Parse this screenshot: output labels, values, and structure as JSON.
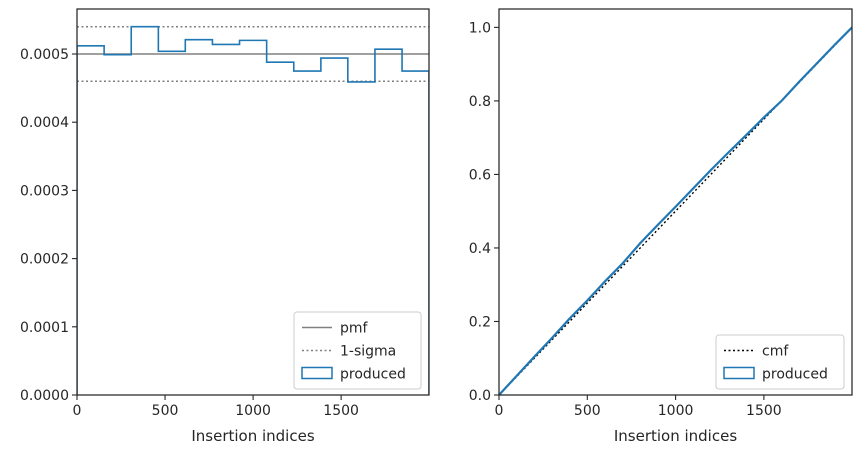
{
  "chart_data": [
    {
      "type": "line",
      "panel": "left",
      "xlabel": "Insertion indices",
      "ylabel": "",
      "title": "",
      "xlim": [
        0,
        1999
      ],
      "ylim": [
        0,
        0.000566
      ],
      "xticks": [
        0,
        500,
        1000,
        1500
      ],
      "xtick_labels": [
        "0",
        "500",
        "1000",
        "1500"
      ],
      "yticks": [
        0,
        0.0001,
        0.0002,
        0.0003,
        0.0004,
        0.0005
      ],
      "ytick_labels": [
        "0.0000",
        "0.0001",
        "0.0002",
        "0.0003",
        "0.0004",
        "0.0005"
      ],
      "grid": false,
      "legend_position": "lower-right",
      "series": [
        {
          "name": "pmf",
          "kind": "hline",
          "y": 0.0005,
          "color": "#808080",
          "style": "solid"
        },
        {
          "name": "1-sigma",
          "kind": "hlines",
          "y": [
            0.00046,
            0.00054
          ],
          "color": "#808080",
          "style": "dotted"
        },
        {
          "name": "produced",
          "kind": "step-hist",
          "color": "#1f77b4",
          "bin_edges": [
            0,
            154,
            308,
            462,
            615,
            769,
            923,
            1077,
            1231,
            1385,
            1538,
            1692,
            1846,
            1999
          ],
          "values": [
            0.000512,
            0.000499,
            0.00054,
            0.000504,
            0.000521,
            0.000514,
            0.00052,
            0.000488,
            0.000475,
            0.000494,
            0.000459,
            0.000507,
            0.000475
          ]
        }
      ]
    },
    {
      "type": "line",
      "panel": "right",
      "xlabel": "Insertion indices",
      "ylabel": "",
      "title": "",
      "xlim": [
        0,
        1999
      ],
      "ylim": [
        0,
        1.05
      ],
      "xticks": [
        0,
        500,
        1000,
        1500
      ],
      "xtick_labels": [
        "0",
        "500",
        "1000",
        "1500"
      ],
      "yticks": [
        0,
        0.2,
        0.4,
        0.6,
        0.8,
        1.0
      ],
      "ytick_labels": [
        "0.0",
        "0.2",
        "0.4",
        "0.6",
        "0.8",
        "1.0"
      ],
      "grid": false,
      "legend_position": "lower-right",
      "series": [
        {
          "name": "cmf",
          "kind": "line",
          "color": "#000000",
          "style": "dotted",
          "x": [
            0,
            1999
          ],
          "y": [
            0,
            1.0
          ]
        },
        {
          "name": "produced",
          "kind": "step-line",
          "color": "#1f77b4",
          "x": [
            0,
            100,
            200,
            300,
            400,
            500,
            600,
            700,
            800,
            900,
            1000,
            1100,
            1200,
            1300,
            1400,
            1500,
            1600,
            1700,
            1800,
            1900,
            1999
          ],
          "y": [
            0,
            0.052,
            0.104,
            0.155,
            0.208,
            0.257,
            0.309,
            0.358,
            0.413,
            0.463,
            0.512,
            0.562,
            0.612,
            0.66,
            0.707,
            0.755,
            0.8,
            0.852,
            0.902,
            0.952,
            1.0
          ]
        }
      ]
    }
  ]
}
